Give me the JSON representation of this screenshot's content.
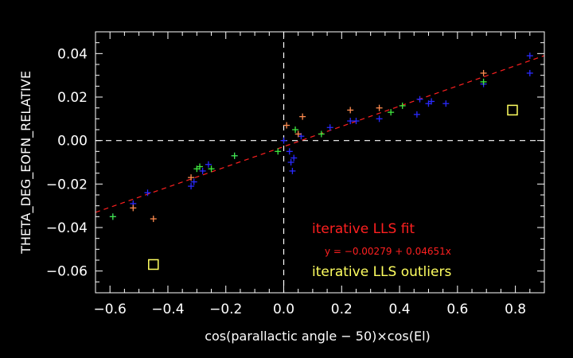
{
  "chart_data": {
    "type": "scatter",
    "title": "",
    "xlabel": "cos(parallactic angle − 50)×cos(El)",
    "ylabel": "THETA_DEG_EOFN_RELATIVE",
    "xlim": [
      -0.65,
      0.9
    ],
    "ylim": [
      -0.07,
      0.05
    ],
    "xticks": [
      -0.6,
      -0.4,
      -0.2,
      0.0,
      0.2,
      0.4,
      0.6,
      0.8
    ],
    "xtick_labels": [
      "−0.6",
      "−0.4",
      "−0.2",
      "0.0",
      "0.2",
      "0.4",
      "0.6",
      "0.8"
    ],
    "yticks": [
      -0.06,
      -0.04,
      -0.02,
      0.0,
      0.02,
      0.04
    ],
    "ytick_labels": [
      "−0.06",
      "−0.04",
      "−0.02",
      "0.00",
      "0.02",
      "0.04"
    ],
    "grid": false,
    "reference_lines": {
      "x": 0,
      "y": 0,
      "color": "#ffffff",
      "style": "dashed"
    },
    "fit": {
      "label": "iterative LLS fit",
      "equation": "y = −0.00279 + 0.04651x",
      "intercept": -0.00279,
      "slope": 0.04651,
      "color": "#ff2020",
      "style": "dashed"
    },
    "outliers_label": "iterative LLS outliers",
    "outliers_color": "#ffff60",
    "series": [
      {
        "color": "#2a2aff",
        "points": [
          [
            -0.59,
            -0.035
          ],
          [
            -0.52,
            -0.029
          ],
          [
            -0.47,
            -0.024
          ],
          [
            -0.32,
            -0.021
          ],
          [
            -0.31,
            -0.019
          ],
          [
            -0.28,
            -0.014
          ],
          [
            -0.26,
            -0.011
          ],
          [
            -0.17,
            -0.007
          ],
          [
            0.0,
            0.0
          ],
          [
            0.02,
            -0.005
          ],
          [
            0.025,
            -0.01
          ],
          [
            0.03,
            -0.014
          ],
          [
            0.035,
            -0.008
          ],
          [
            0.06,
            0.002
          ],
          [
            0.16,
            0.006
          ],
          [
            0.23,
            0.009
          ],
          [
            0.25,
            0.009
          ],
          [
            0.33,
            0.01
          ],
          [
            0.46,
            0.012
          ],
          [
            0.47,
            0.019
          ],
          [
            0.5,
            0.017
          ],
          [
            0.51,
            0.018
          ],
          [
            0.56,
            0.017
          ],
          [
            0.69,
            0.026
          ],
          [
            0.85,
            0.039
          ],
          [
            0.85,
            0.031
          ]
        ]
      },
      {
        "color": "#ff8c50",
        "points": [
          [
            -0.52,
            -0.031
          ],
          [
            -0.45,
            -0.036
          ],
          [
            -0.32,
            -0.017
          ],
          [
            0.01,
            0.007
          ],
          [
            0.05,
            0.003
          ],
          [
            0.065,
            0.011
          ],
          [
            0.23,
            0.014
          ],
          [
            0.33,
            0.015
          ],
          [
            0.69,
            0.031
          ]
        ]
      },
      {
        "color": "#40e840",
        "points": [
          [
            -0.59,
            -0.035
          ],
          [
            -0.3,
            -0.013
          ],
          [
            -0.29,
            -0.012
          ],
          [
            -0.25,
            -0.013
          ],
          [
            -0.17,
            -0.007
          ],
          [
            -0.02,
            -0.005
          ],
          [
            0.04,
            0.005
          ],
          [
            0.13,
            0.003
          ],
          [
            0.37,
            0.013
          ],
          [
            0.41,
            0.016
          ],
          [
            0.69,
            0.027
          ]
        ]
      }
    ],
    "outliers": [
      [
        -0.45,
        -0.057
      ],
      [
        0.79,
        0.014
      ]
    ]
  }
}
